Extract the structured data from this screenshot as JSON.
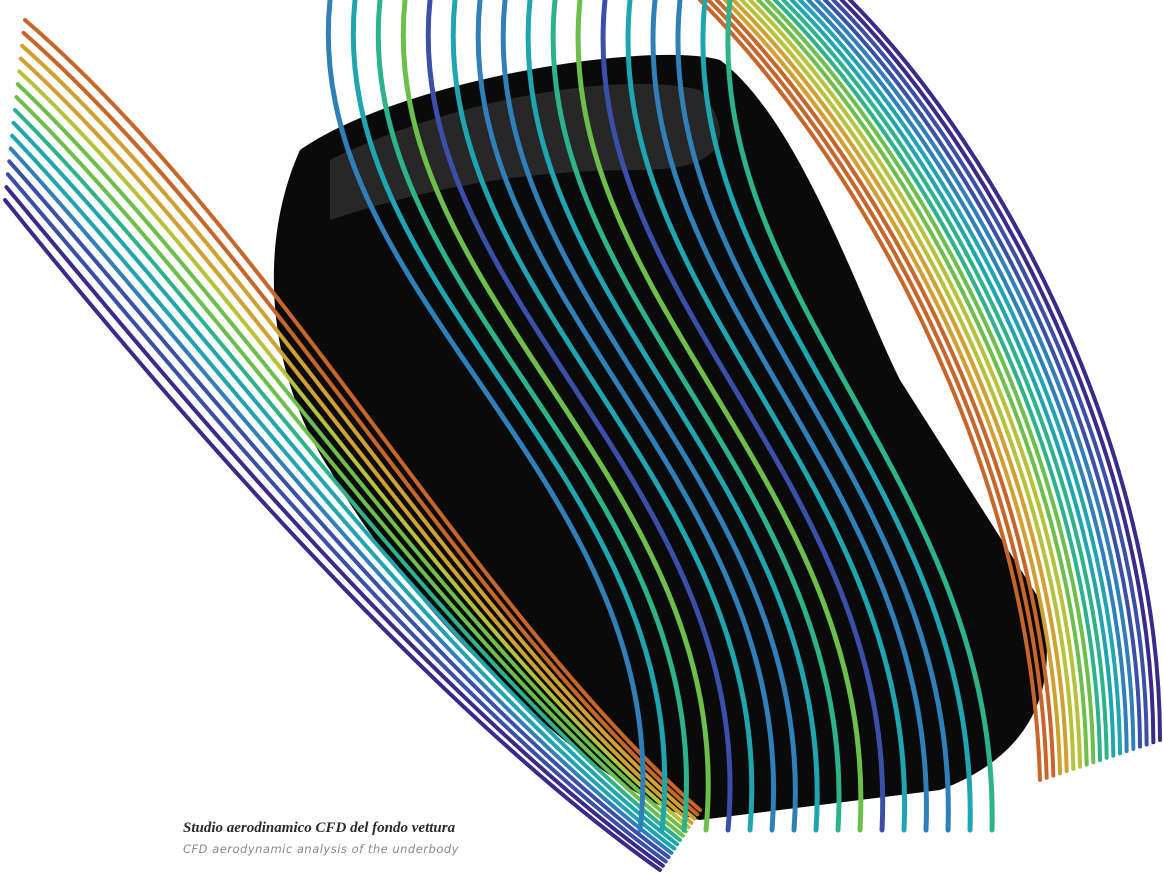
{
  "caption": {
    "title": "Studio aerodinamico CFD del fondo vettura",
    "subtitle": "CFD aerodynamic analysis of the underbody"
  }
}
